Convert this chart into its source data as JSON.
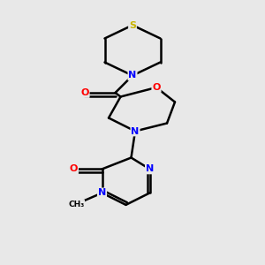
{
  "background_color": "#e8e8e8",
  "atom_colors": {
    "S": "#c8b400",
    "N": "#0000ff",
    "O": "#ff0000",
    "C": "#000000"
  },
  "bond_color": "#000000",
  "bond_width": 1.8,
  "figsize": [
    3.0,
    3.0
  ],
  "dpi": 100
}
